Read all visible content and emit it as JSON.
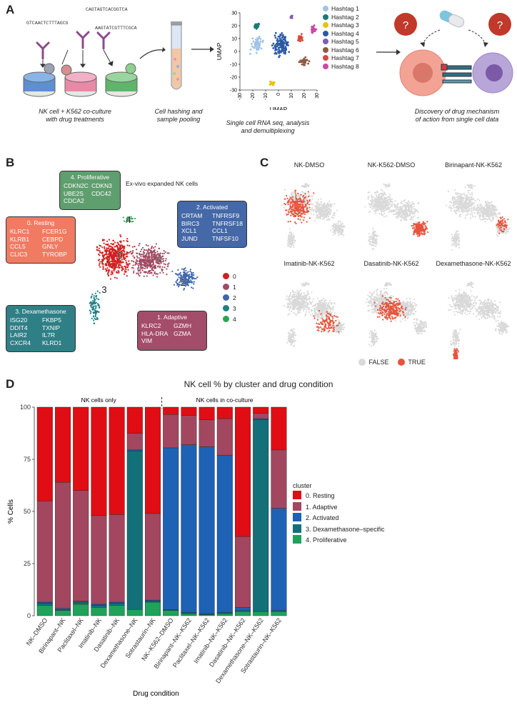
{
  "panels": {
    "a": "A",
    "b": "B",
    "c": "C",
    "d": "D"
  },
  "panel_a": {
    "sequences": [
      "CAGTAGTCACGGTCA",
      "GTCAACTCTTTAGCG",
      "AAGTATCGTTTCGCA"
    ],
    "caption1": [
      "NK cell + K562 co-culture",
      "with drug treatments"
    ],
    "caption2": [
      "Cell hashing and",
      "sample pooling"
    ],
    "caption3": [
      "Single cell RNA seq, analysis",
      "and demultiplexing"
    ],
    "caption4": [
      "Discovery of drug mechanism",
      "of action from single cell data"
    ],
    "question_mark": "?",
    "umap": {
      "xlabel": "UMAP",
      "ylabel": "UMAP",
      "xticks": [
        "-30",
        "-20",
        "-10",
        "0",
        "10",
        "20",
        "30"
      ],
      "yticks": [
        "30",
        "20",
        "10",
        "0",
        "-10",
        "-20",
        "-30"
      ],
      "legend": [
        {
          "label": "Hashtag 1",
          "color": "#9ec3e6"
        },
        {
          "label": "Hashtag 2",
          "color": "#1b7a78"
        },
        {
          "label": "Hashtag 3",
          "color": "#e8c20e"
        },
        {
          "label": "Hashtag 4",
          "color": "#2a5aa5"
        },
        {
          "label": "Hashtag 5",
          "color": "#7e5db3"
        },
        {
          "label": "Hashtag 6",
          "color": "#8a5a42"
        },
        {
          "label": "Hashtag 7",
          "color": "#d34a3c"
        },
        {
          "label": "Hashtag 8",
          "color": "#c94aa6"
        }
      ]
    }
  },
  "panel_b": {
    "subtitle": "Ex-vivo expanded NK cells",
    "boxes": [
      {
        "title": "4. Proliferative",
        "genes": [
          "CDKN2C",
          "CDKN3",
          "UBE2S",
          "CDC42",
          "CDCA2",
          ""
        ],
        "color": "#5f9e6e"
      },
      {
        "title": "0. Resting",
        "genes": [
          "KLRC1",
          "FCER1G",
          "KLRB1",
          "CEBPD",
          "CCL5",
          "GNLY",
          "CLIC3",
          "TYROBP"
        ],
        "color": "#f07b62"
      },
      {
        "title": "2. Activated",
        "genes": [
          "CRTAM",
          "TNFRSF9",
          "BIRC3",
          "TNFRSF18",
          "XCL1",
          "CCL1",
          "JUND",
          "TNFSF10"
        ],
        "color": "#4468a8"
      },
      {
        "title": "3. Dexamethasone",
        "genes": [
          "ISG20",
          "FKBP5",
          "DDIT4",
          "TXNIP",
          "LAIR2",
          "IL7R",
          "CXCR4",
          "KLRD1"
        ],
        "color": "#2f7f86"
      },
      {
        "title": "1. Adaptive",
        "genes": [
          "KLRC2",
          "GZMH",
          "HLA-DRA",
          "GZMA",
          "VIM",
          ""
        ],
        "color": "#a34d6a"
      }
    ],
    "cluster_labels": [
      "0",
      "1",
      "2",
      "3",
      "4"
    ],
    "legend": [
      {
        "label": "0",
        "color": "#d11f1f"
      },
      {
        "label": "1",
        "color": "#a14a63"
      },
      {
        "label": "2",
        "color": "#3f66ad"
      },
      {
        "label": "3",
        "color": "#1f7f85"
      },
      {
        "label": "4",
        "color": "#2aa653"
      }
    ]
  },
  "panel_c": {
    "titles": [
      "NK-DMSO",
      "NK-K562-DMSO",
      "Birinapant-NK-K562",
      "Imatinib-NK-K562",
      "Dasatinib-NK-K562",
      "Dexamethasone-NK-K562"
    ],
    "legend": [
      {
        "label": "FALSE",
        "color": "#d9d9d9"
      },
      {
        "label": "TRUE",
        "color": "#e8533b"
      }
    ]
  },
  "chart_data": {
    "type": "bar",
    "stacked": true,
    "title": "NK cell % by cluster and drug condition",
    "xlabel": "Drug condition",
    "ylabel": "% Cells",
    "ylim": [
      0,
      100
    ],
    "yticks": [
      "0",
      "25",
      "50",
      "75",
      "100"
    ],
    "group_labels": [
      "NK cells only",
      "NK cells in co-culture"
    ],
    "categories": [
      "NK–DMSO",
      "Birinapant–NK",
      "Paclitaxel–NK",
      "Imatinib–NK",
      "Dasatinib–NK",
      "Dexamethasone–NK",
      "Sotrastaurin–NK",
      "NK–K562–DMSO",
      "Birinapant–NK–K562",
      "Paclitaxel–NK–K562",
      "Imatinib–NK–K562",
      "Dasatinib–NK–K562",
      "Dexamethasone–NK–K562",
      "Sotrastaurin–NK–K562"
    ],
    "legend_title": "cluster",
    "series": [
      {
        "name": "4. Proliferative",
        "color": "#1fa35b",
        "values": [
          5,
          2.5,
          5.5,
          4,
          5,
          3,
          6.5,
          2.5,
          1,
          0.5,
          1,
          2,
          2,
          2
        ]
      },
      {
        "name": "3. Dexamethasone–specific",
        "color": "#137078",
        "values": [
          1,
          0.5,
          1,
          1,
          1,
          76,
          0.5,
          0.5,
          0.5,
          0.5,
          0.5,
          0.5,
          92,
          0.5
        ]
      },
      {
        "name": "2. Activated",
        "color": "#1d62b4",
        "values": [
          0.5,
          0.5,
          0.5,
          0.5,
          0.5,
          0.5,
          0.5,
          77.5,
          80.5,
          80,
          75.5,
          1.5,
          0.5,
          49
        ]
      },
      {
        "name": "1. Adaptive",
        "color": "#a2475f",
        "values": [
          48.5,
          60.5,
          53,
          42.5,
          42,
          8,
          41.5,
          16,
          14,
          13,
          17.5,
          34,
          2.5,
          28
        ]
      },
      {
        "name": "0. Resting",
        "color": "#e10d14",
        "values": [
          45,
          36,
          40,
          52,
          51.5,
          12.5,
          51,
          3.5,
          4,
          6,
          5.5,
          62,
          3,
          20.5
        ]
      }
    ]
  }
}
